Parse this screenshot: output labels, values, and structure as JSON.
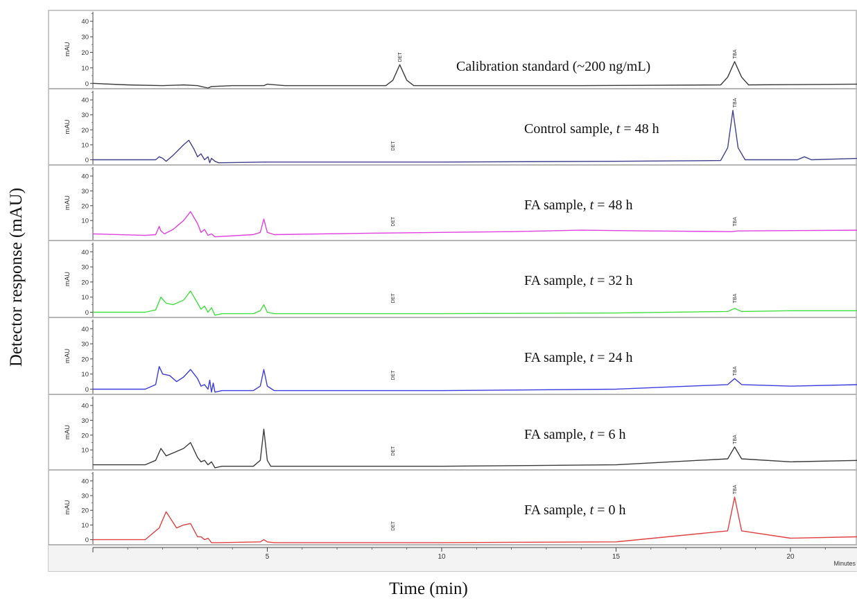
{
  "chart_data": {
    "type": "line",
    "title": "",
    "xlabel": "Time (min)",
    "ylabel": "Detector response (mAU)",
    "xlim": [
      0,
      22
    ],
    "x_ticks": [
      5,
      10,
      15,
      20
    ],
    "x_unit_label": "Minutes",
    "panel_ylabel": "mAU",
    "panel_ylim": [
      -3,
      47
    ],
    "panel_yticks": [
      0,
      10,
      20,
      30,
      40
    ],
    "series": [
      {
        "name": "Calibration standard (~200 ng/mL)",
        "color": "#3a3a3a",
        "yticks": [
          0,
          10,
          20,
          30,
          40
        ],
        "peak_labels": [
          {
            "text": "DET",
            "x": 8.8
          },
          {
            "text": "TBA",
            "x": 18.4
          }
        ],
        "x": [
          0,
          1,
          2,
          2.6,
          3.0,
          3.3,
          3.4,
          4.0,
          4.9,
          5.0,
          5.5,
          8.4,
          8.6,
          8.8,
          9.0,
          9.2,
          10,
          14,
          18.0,
          18.2,
          18.4,
          18.6,
          18.8,
          20,
          22
        ],
        "y": [
          0,
          -1,
          -1.5,
          -1,
          -1.5,
          -3,
          -2,
          -1.5,
          -1.5,
          -0.5,
          -1.5,
          -1.5,
          2,
          12,
          2,
          -1.5,
          -1.5,
          -1.5,
          -1,
          4,
          14,
          4,
          -1,
          -0.8,
          -0.5
        ]
      },
      {
        "name": "Control sample, t = 48 h",
        "color": "#40408c",
        "yticks": [
          0,
          10,
          20,
          30,
          40
        ],
        "peak_labels": [
          {
            "text": "DET",
            "x": 8.6
          },
          {
            "text": "TBA",
            "x": 18.4
          }
        ],
        "x": [
          0,
          1.2,
          1.8,
          1.9,
          2.0,
          2.1,
          2.3,
          2.6,
          2.75,
          2.9,
          3.0,
          3.1,
          3.2,
          3.3,
          3.35,
          3.4,
          3.5,
          3.6,
          5,
          10,
          15,
          18.0,
          18.2,
          18.35,
          18.5,
          18.7,
          20.2,
          20.4,
          20.6,
          22
        ],
        "y": [
          0,
          0,
          0,
          2,
          1,
          -1,
          3,
          10,
          13,
          7,
          2,
          4,
          0,
          2,
          -2,
          1,
          -1,
          -2,
          -1.5,
          -1.5,
          -1,
          -0.5,
          8,
          33,
          8,
          0,
          0,
          2,
          0,
          1
        ]
      },
      {
        "name": "FA sample, t = 48 h",
        "color": "#e040e0",
        "yticks": [
          10,
          20,
          30,
          40
        ],
        "peak_labels": [
          {
            "text": "DET",
            "x": 8.6
          },
          {
            "text": "TBA",
            "x": 18.4
          }
        ],
        "x": [
          0,
          1.5,
          1.8,
          1.9,
          1.95,
          2.05,
          2.3,
          2.6,
          2.8,
          3.0,
          3.1,
          3.2,
          3.3,
          3.4,
          3.5,
          4.6,
          4.8,
          4.9,
          5.0,
          5.2,
          8,
          12,
          14,
          16,
          18.3,
          18.5,
          22
        ],
        "y": [
          1,
          0,
          0.5,
          6,
          3,
          1,
          4,
          10,
          16,
          8,
          2,
          4,
          0,
          1,
          -1,
          0.5,
          2,
          11,
          2,
          0.5,
          1.5,
          2.5,
          3.5,
          3,
          2.5,
          3,
          3.5
        ]
      },
      {
        "name": "FA sample, t = 32 h",
        "color": "#40e040",
        "yticks": [
          0,
          10,
          20,
          30,
          40
        ],
        "peak_labels": [
          {
            "text": "DET",
            "x": 8.6
          },
          {
            "text": "TBA",
            "x": 18.4
          }
        ],
        "x": [
          0,
          1.5,
          1.8,
          1.95,
          2.1,
          2.3,
          2.6,
          2.8,
          3.0,
          3.1,
          3.2,
          3.3,
          3.4,
          3.5,
          3.7,
          4.6,
          4.8,
          4.9,
          5.0,
          5.2,
          10,
          15,
          18.2,
          18.4,
          18.6,
          20,
          22
        ],
        "y": [
          0,
          0,
          1.5,
          10,
          6,
          5,
          8,
          14,
          6,
          2,
          4,
          0,
          3,
          -2,
          -1,
          -1,
          1,
          5,
          0,
          -1,
          -1,
          -0.5,
          0.5,
          2.5,
          0.5,
          1,
          1
        ]
      },
      {
        "name": "FA sample, t = 24 h",
        "color": "#3b3be0",
        "yticks": [
          0,
          10,
          20,
          30,
          40
        ],
        "peak_labels": [
          {
            "text": "DET",
            "x": 8.6
          },
          {
            "text": "TBA",
            "x": 18.4
          }
        ],
        "x": [
          0,
          1.5,
          1.8,
          1.9,
          2.0,
          2.2,
          2.4,
          2.6,
          2.8,
          3.0,
          3.1,
          3.2,
          3.3,
          3.35,
          3.4,
          3.45,
          3.5,
          3.7,
          4.6,
          4.8,
          4.9,
          5.0,
          5.2,
          10,
          15,
          18.2,
          18.4,
          18.6,
          20,
          22
        ],
        "y": [
          0,
          0,
          3,
          15,
          10,
          9,
          5,
          8,
          13,
          7,
          2,
          3,
          0,
          6,
          -2,
          4,
          -2,
          -1,
          -1,
          2,
          13,
          2,
          -1,
          -1,
          0,
          3,
          7,
          3,
          2,
          3
        ]
      },
      {
        "name": "FA sample, t = 6 h",
        "color": "#3a3a3a",
        "yticks": [
          10,
          20,
          30,
          40
        ],
        "peak_labels": [
          {
            "text": "DET",
            "x": 8.6
          },
          {
            "text": "TBA",
            "x": 18.4
          }
        ],
        "x": [
          0,
          1.5,
          1.8,
          1.95,
          2.1,
          2.3,
          2.6,
          2.8,
          3.0,
          3.1,
          3.2,
          3.3,
          3.4,
          3.5,
          3.7,
          4.6,
          4.8,
          4.9,
          5.0,
          5.1,
          5.3,
          10,
          15,
          18.2,
          18.4,
          18.6,
          20,
          22
        ],
        "y": [
          0,
          0,
          3,
          11,
          6,
          8,
          11,
          15,
          5,
          2,
          3,
          0,
          2,
          -2,
          -1,
          -1,
          3,
          24,
          3,
          -1,
          -1,
          -1,
          0,
          4,
          12,
          4,
          2,
          3
        ]
      },
      {
        "name": "FA sample, t = 0 h",
        "color": "#e04040",
        "yticks": [
          0,
          10,
          20,
          30,
          40
        ],
        "peak_labels": [
          {
            "text": "DET",
            "x": 8.6
          },
          {
            "text": "TBA",
            "x": 18.4
          }
        ],
        "x": [
          0,
          1.5,
          1.9,
          2.1,
          2.4,
          2.6,
          2.8,
          3.0,
          3.1,
          3.2,
          3.3,
          3.4,
          3.6,
          4.8,
          4.9,
          5.0,
          5.2,
          10,
          15,
          18.2,
          18.4,
          18.6,
          20,
          22
        ],
        "y": [
          0,
          0,
          8,
          19,
          8,
          10,
          11,
          2,
          2,
          0,
          1,
          -2,
          -2,
          -1.5,
          0,
          -1.5,
          -2,
          -2,
          -1.5,
          6,
          29,
          6,
          1,
          2
        ]
      }
    ]
  }
}
